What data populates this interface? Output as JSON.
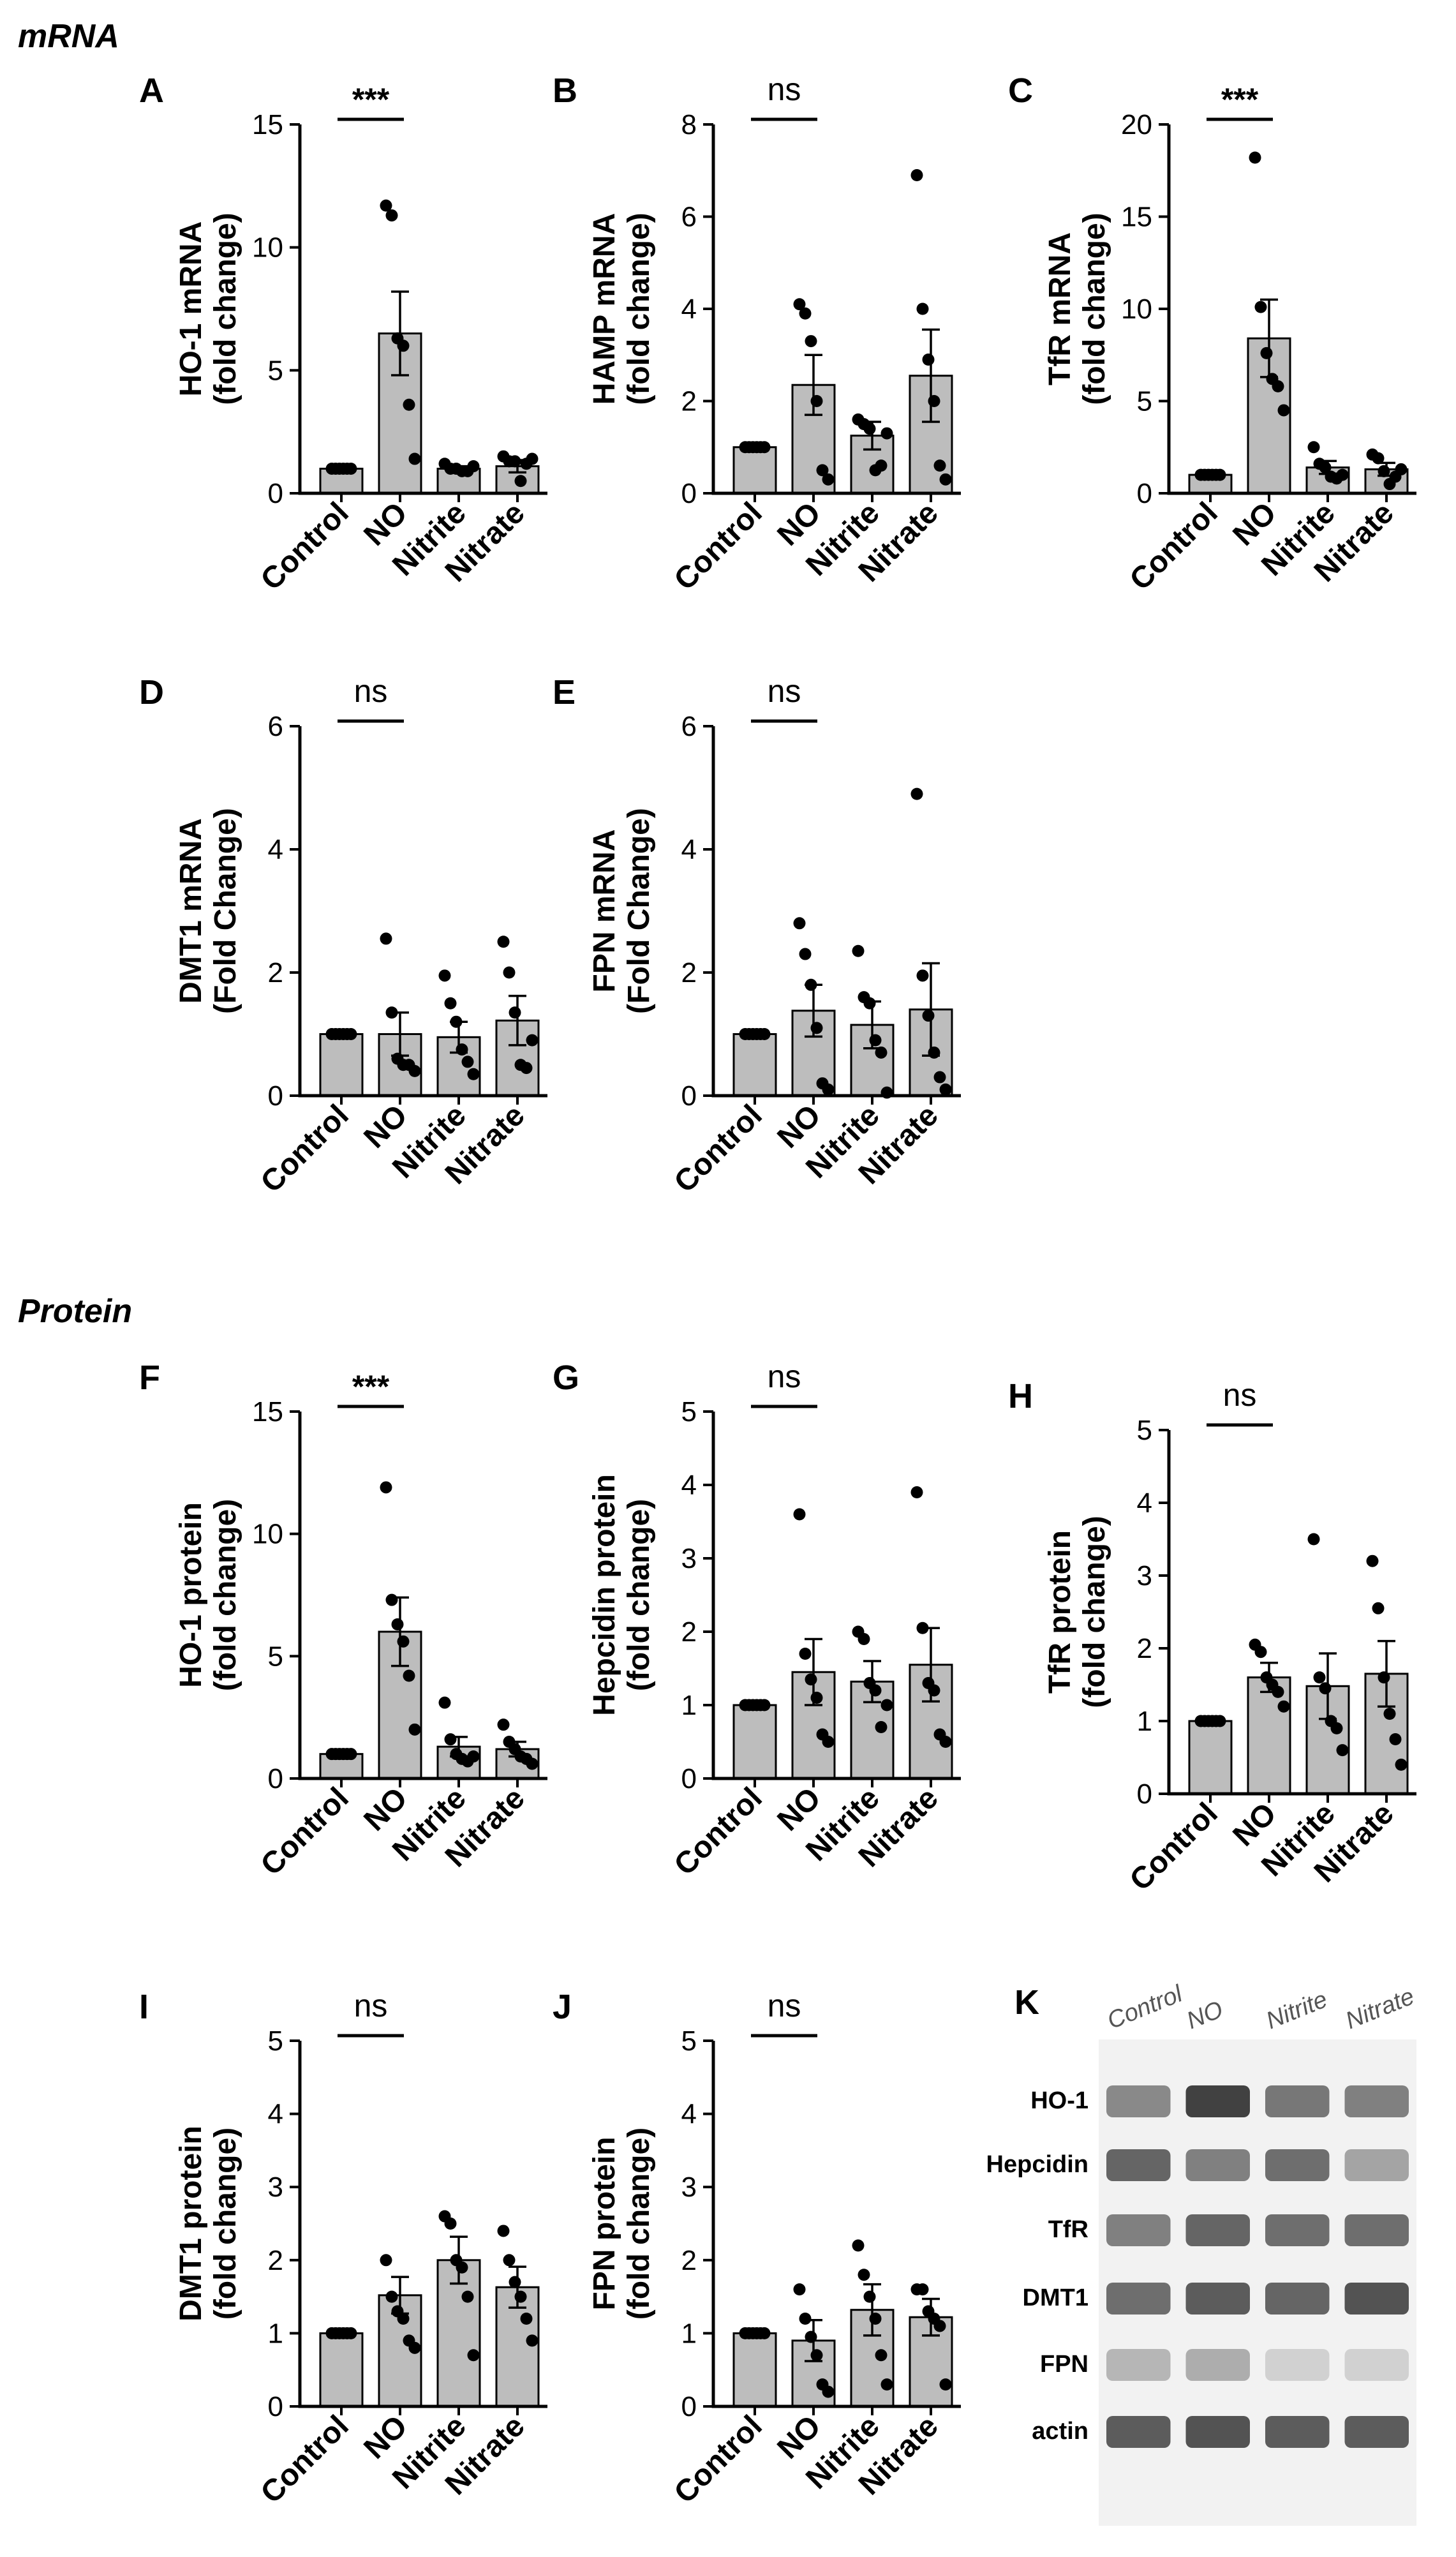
{
  "sections": {
    "mrna": "mRNA",
    "protein": "Protein"
  },
  "categories": [
    "Control",
    "NO",
    "Nitrite",
    "Nitrate"
  ],
  "colors": {
    "bar_fill": "#bdbdbd",
    "stroke": "#000000",
    "band": "#333333"
  },
  "chart_data": [
    {
      "id": "A",
      "type": "bar",
      "ylabel_line1": "HO-1 mRNA",
      "ylabel_line2": "(fold change)",
      "ylim": [
        0,
        15
      ],
      "yticks": [
        0,
        5,
        10,
        15
      ],
      "categories": [
        "Control",
        "NO",
        "Nitrite",
        "Nitrate"
      ],
      "values": [
        1.0,
        6.5,
        1.0,
        1.1
      ],
      "sem": [
        0.05,
        1.7,
        0.1,
        0.25
      ],
      "points": [
        [
          1,
          1,
          1,
          1,
          1,
          1
        ],
        [
          11.7,
          11.3,
          6.3,
          6.0,
          3.6,
          1.4
        ],
        [
          1.2,
          1.0,
          1.0,
          0.9,
          0.9,
          1.1
        ],
        [
          1.5,
          1.3,
          1.3,
          0.5,
          1.2,
          1.4
        ]
      ],
      "significance": {
        "label": "***",
        "between": [
          "Control",
          "NO"
        ]
      }
    },
    {
      "id": "B",
      "type": "bar",
      "ylabel_line1": "HAMP mRNA",
      "ylabel_line2": "(fold change)",
      "ylim": [
        0,
        8
      ],
      "yticks": [
        0,
        2,
        4,
        6,
        8
      ],
      "categories": [
        "Control",
        "NO",
        "Nitrite",
        "Nitrate"
      ],
      "values": [
        1.0,
        2.35,
        1.25,
        2.55
      ],
      "sem": [
        0.03,
        0.65,
        0.3,
        1.0
      ],
      "points": [
        [
          1,
          1,
          1,
          1,
          1,
          1
        ],
        [
          4.1,
          3.9,
          3.3,
          2.0,
          0.5,
          0.3
        ],
        [
          1.6,
          1.5,
          1.4,
          0.5,
          0.6,
          1.3
        ],
        [
          6.9,
          4.0,
          2.9,
          2.0,
          0.6,
          0.3
        ]
      ],
      "significance": {
        "label": "ns",
        "between": [
          "Control",
          "NO"
        ]
      }
    },
    {
      "id": "C",
      "type": "bar",
      "ylabel_line1": "TfR mRNA",
      "ylabel_line2": "(fold change)",
      "ylim": [
        0,
        20
      ],
      "yticks": [
        0,
        5,
        10,
        15,
        20
      ],
      "categories": [
        "Control",
        "NO",
        "Nitrite",
        "Nitrate"
      ],
      "values": [
        1.0,
        8.4,
        1.4,
        1.3
      ],
      "sem": [
        0.05,
        2.1,
        0.35,
        0.35
      ],
      "points": [
        [
          1,
          1,
          1,
          1,
          1,
          1
        ],
        [
          18.2,
          10.1,
          7.6,
          6.2,
          5.8,
          4.5
        ],
        [
          2.5,
          1.6,
          1.4,
          0.9,
          0.8,
          1.0
        ],
        [
          2.1,
          1.9,
          1.2,
          0.5,
          0.9,
          1.3
        ]
      ],
      "significance": {
        "label": "***",
        "between": [
          "Control",
          "NO"
        ]
      }
    },
    {
      "id": "D",
      "type": "bar",
      "ylabel_line1": "DMT1 mRNA",
      "ylabel_line2": "(Fold Change)",
      "ylim": [
        0,
        6
      ],
      "yticks": [
        0,
        2,
        4,
        6
      ],
      "categories": [
        "Control",
        "NO",
        "Nitrite",
        "Nitrate"
      ],
      "values": [
        1.0,
        1.0,
        0.95,
        1.22
      ],
      "sem": [
        0.02,
        0.35,
        0.25,
        0.4
      ],
      "points": [
        [
          1,
          1,
          1,
          1,
          1,
          1
        ],
        [
          2.55,
          1.35,
          0.6,
          0.5,
          0.5,
          0.4
        ],
        [
          1.95,
          1.5,
          1.2,
          0.75,
          0.55,
          0.35
        ],
        [
          2.5,
          2.0,
          1.35,
          0.5,
          0.45,
          0.9
        ]
      ],
      "significance": {
        "label": "ns",
        "between": [
          "Control",
          "NO"
        ]
      }
    },
    {
      "id": "E",
      "type": "bar",
      "ylabel_line1": "FPN mRNA",
      "ylabel_line2": "(Fold Change)",
      "ylim": [
        0,
        6
      ],
      "yticks": [
        0,
        2,
        4,
        6
      ],
      "categories": [
        "Control",
        "NO",
        "Nitrite",
        "Nitrate"
      ],
      "values": [
        1.0,
        1.38,
        1.15,
        1.4
      ],
      "sem": [
        0.02,
        0.42,
        0.38,
        0.75
      ],
      "points": [
        [
          1,
          1,
          1,
          1,
          1,
          1
        ],
        [
          2.8,
          2.3,
          1.8,
          1.1,
          0.2,
          0.1
        ],
        [
          2.35,
          1.6,
          1.5,
          0.9,
          0.7,
          0.05
        ],
        [
          4.9,
          1.95,
          1.3,
          0.7,
          0.3,
          0.1
        ]
      ],
      "significance": {
        "label": "ns",
        "between": [
          "Control",
          "NO"
        ]
      }
    },
    {
      "id": "F",
      "type": "bar",
      "ylabel_line1": "HO-1 protein",
      "ylabel_line2": "(fold change)",
      "ylim": [
        0,
        15
      ],
      "yticks": [
        0,
        5,
        10,
        15
      ],
      "categories": [
        "Control",
        "NO",
        "Nitrite",
        "Nitrate"
      ],
      "values": [
        1.0,
        6.0,
        1.3,
        1.2
      ],
      "sem": [
        0.05,
        1.4,
        0.4,
        0.3
      ],
      "points": [
        [
          1,
          1,
          1,
          1,
          1,
          1
        ],
        [
          11.9,
          7.3,
          6.3,
          5.6,
          4.2,
          2.0
        ],
        [
          3.1,
          1.6,
          1.0,
          0.8,
          0.7,
          0.9
        ],
        [
          2.2,
          1.5,
          1.2,
          0.9,
          0.8,
          0.6
        ]
      ],
      "significance": {
        "label": "***",
        "between": [
          "Control",
          "NO"
        ]
      }
    },
    {
      "id": "G",
      "type": "bar",
      "ylabel_line1": "Hepcidin protein",
      "ylabel_line2": "(fold change)",
      "ylim": [
        0,
        5
      ],
      "yticks": [
        0,
        1,
        2,
        3,
        4,
        5
      ],
      "categories": [
        "Control",
        "NO",
        "Nitrite",
        "Nitrate"
      ],
      "values": [
        1.0,
        1.45,
        1.32,
        1.55
      ],
      "sem": [
        0.02,
        0.45,
        0.28,
        0.5
      ],
      "points": [
        [
          1,
          1,
          1,
          1,
          1,
          1
        ],
        [
          3.6,
          1.7,
          1.35,
          1.1,
          0.6,
          0.5
        ],
        [
          2.0,
          1.9,
          1.3,
          1.2,
          0.7,
          1.0
        ],
        [
          3.9,
          2.05,
          1.3,
          1.2,
          0.6,
          0.5
        ]
      ],
      "significance": {
        "label": "ns",
        "between": [
          "Control",
          "NO"
        ]
      }
    },
    {
      "id": "H",
      "type": "bar",
      "ylabel_line1": "TfR protein",
      "ylabel_line2": "(fold change)",
      "ylim": [
        0,
        5
      ],
      "yticks": [
        0,
        1,
        2,
        3,
        4,
        5
      ],
      "categories": [
        "Control",
        "NO",
        "Nitrite",
        "Nitrate"
      ],
      "values": [
        1.0,
        1.6,
        1.48,
        1.65
      ],
      "sem": [
        0.02,
        0.2,
        0.45,
        0.45
      ],
      "points": [
        [
          1,
          1,
          1,
          1,
          1,
          1
        ],
        [
          2.05,
          1.95,
          1.6,
          1.5,
          1.4,
          1.2
        ],
        [
          3.5,
          1.6,
          1.45,
          1.0,
          0.9,
          0.6
        ],
        [
          3.2,
          2.55,
          1.6,
          1.1,
          0.75,
          0.4
        ]
      ],
      "significance": {
        "label": "ns",
        "between": [
          "Control",
          "NO"
        ]
      }
    },
    {
      "id": "I",
      "type": "bar",
      "ylabel_line1": "DMT1 protein",
      "ylabel_line2": "(fold change)",
      "ylim": [
        0,
        5
      ],
      "yticks": [
        0,
        1,
        2,
        3,
        4,
        5
      ],
      "categories": [
        "Control",
        "NO",
        "Nitrite",
        "Nitrate"
      ],
      "values": [
        1.0,
        1.52,
        2.0,
        1.63
      ],
      "sem": [
        0.02,
        0.25,
        0.32,
        0.28
      ],
      "points": [
        [
          1,
          1,
          1,
          1,
          1,
          1
        ],
        [
          2.0,
          1.5,
          1.3,
          1.2,
          0.9,
          0.8
        ],
        [
          2.6,
          2.5,
          2.0,
          1.9,
          1.5,
          0.7
        ],
        [
          2.4,
          2.0,
          1.7,
          1.5,
          1.2,
          0.9
        ]
      ],
      "significance": {
        "label": "ns",
        "between": [
          "Control",
          "NO"
        ]
      }
    },
    {
      "id": "J",
      "type": "bar",
      "ylabel_line1": "FPN protein",
      "ylabel_line2": "(fold change)",
      "ylim": [
        0,
        5
      ],
      "yticks": [
        0,
        1,
        2,
        3,
        4,
        5
      ],
      "categories": [
        "Control",
        "NO",
        "Nitrite",
        "Nitrate"
      ],
      "values": [
        1.0,
        0.9,
        1.32,
        1.22
      ],
      "sem": [
        0.02,
        0.28,
        0.35,
        0.25
      ],
      "points": [
        [
          1,
          1,
          1,
          1,
          1,
          1
        ],
        [
          1.6,
          1.2,
          0.95,
          0.7,
          0.3,
          0.2
        ],
        [
          2.2,
          1.8,
          1.5,
          1.2,
          0.7,
          0.3
        ],
        [
          1.6,
          1.6,
          1.3,
          1.2,
          1.1,
          0.3
        ]
      ],
      "significance": {
        "label": "ns",
        "between": [
          "Control",
          "NO"
        ]
      }
    }
  ],
  "blot": {
    "id": "K",
    "columns": [
      "Control",
      "NO",
      "Nitrite",
      "Nitrate"
    ],
    "rows": [
      {
        "label": "HO-1",
        "intensity": [
          0.55,
          0.95,
          0.65,
          0.6
        ]
      },
      {
        "label": "Hepcidin",
        "intensity": [
          0.75,
          0.6,
          0.7,
          0.4
        ]
      },
      {
        "label": "TfR",
        "intensity": [
          0.6,
          0.75,
          0.7,
          0.7
        ]
      },
      {
        "label": "DMT1",
        "intensity": [
          0.7,
          0.8,
          0.75,
          0.85
        ]
      },
      {
        "label": "FPN",
        "intensity": [
          0.3,
          0.35,
          0.15,
          0.15
        ]
      },
      {
        "label": "actin",
        "intensity": [
          0.8,
          0.85,
          0.8,
          0.8
        ]
      }
    ]
  }
}
